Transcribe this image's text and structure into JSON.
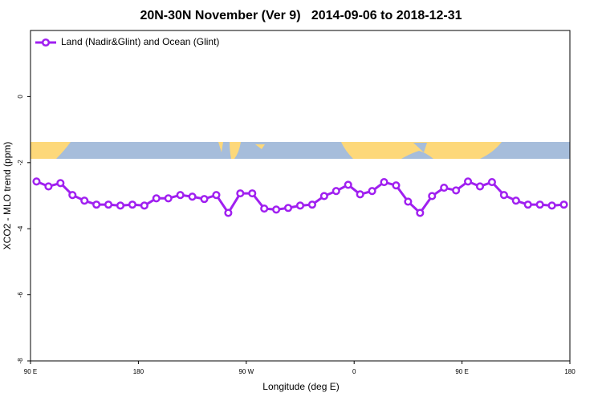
{
  "chart_data": {
    "type": "line",
    "title": "20N-30N November (Ver 9)   2014-09-06 to 2018-12-31",
    "xlabel": "Longitude (deg E)",
    "ylabel": "XCO2 - MLO trend (ppm)",
    "xlim": [
      90,
      540
    ],
    "xticks": [
      {
        "value": 90,
        "label": "90 E"
      },
      180,
      {
        "value": 270,
        "label": "90 W"
      },
      {
        "value": 360,
        "label": "0"
      },
      {
        "value": 450,
        "label": "90 E"
      },
      {
        "value": 540,
        "label": "180"
      }
    ],
    "ylim": [
      -8,
      2
    ],
    "yticks": [
      -8,
      -6,
      -4,
      -2,
      0
    ],
    "legend": "top-left",
    "x": [
      95,
      105,
      115,
      125,
      135,
      145,
      155,
      165,
      175,
      185,
      195,
      205,
      215,
      225,
      235,
      245,
      255,
      265,
      275,
      285,
      295,
      305,
      315,
      325,
      335,
      345,
      355,
      365,
      375,
      385,
      395,
      405,
      415,
      425,
      435,
      445,
      455,
      465,
      475,
      485,
      495,
      505,
      515,
      525,
      535
    ],
    "series": [
      {
        "name": "Land (Nadir&Glint) and Ocean (Glint)",
        "color": "#a020f0",
        "values": [
          -2.57,
          -2.72,
          -2.62,
          -2.98,
          -3.15,
          -3.27,
          -3.27,
          -3.3,
          -3.27,
          -3.3,
          -3.08,
          -3.08,
          -2.98,
          -3.03,
          -3.1,
          -2.98,
          -3.52,
          -2.93,
          -2.93,
          -3.39,
          -3.42,
          -3.37,
          -3.3,
          -3.27,
          -3.01,
          -2.86,
          -2.67,
          -2.96,
          -2.86,
          -2.59,
          -2.69,
          -3.18,
          -3.52,
          -3.01,
          -2.76,
          -2.84,
          -2.57,
          -2.72,
          -2.59,
          -2.98,
          -3.15,
          -3.27,
          -3.27,
          -3.3,
          -3.27
        ]
      }
    ]
  }
}
